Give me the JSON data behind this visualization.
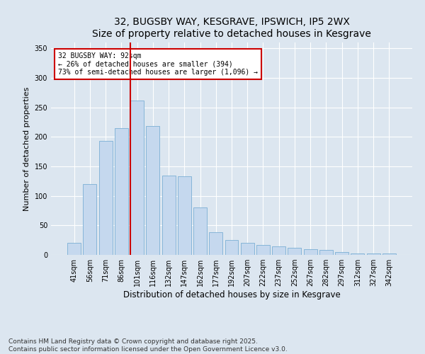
{
  "title": "32, BUGSBY WAY, KESGRAVE, IPSWICH, IP5 2WX",
  "subtitle": "Size of property relative to detached houses in Kesgrave",
  "xlabel": "Distribution of detached houses by size in Kesgrave",
  "ylabel": "Number of detached properties",
  "categories": [
    "41sqm",
    "56sqm",
    "71sqm",
    "86sqm",
    "101sqm",
    "116sqm",
    "132sqm",
    "147sqm",
    "162sqm",
    "177sqm",
    "192sqm",
    "207sqm",
    "222sqm",
    "237sqm",
    "252sqm",
    "267sqm",
    "282sqm",
    "297sqm",
    "312sqm",
    "327sqm",
    "342sqm"
  ],
  "values": [
    20,
    120,
    193,
    215,
    262,
    218,
    135,
    133,
    80,
    38,
    25,
    20,
    17,
    15,
    12,
    10,
    8,
    5,
    3,
    3,
    3
  ],
  "bar_color": "#c5d8ee",
  "bar_edge_color": "#7aafd4",
  "vline_color": "#cc0000",
  "vline_x_index": 3.57,
  "annotation_text": "32 BUGSBY WAY: 92sqm\n← 26% of detached houses are smaller (394)\n73% of semi-detached houses are larger (1,096) →",
  "annotation_box_facecolor": "#ffffff",
  "annotation_box_edgecolor": "#cc0000",
  "ylim": [
    0,
    360
  ],
  "yticks": [
    0,
    50,
    100,
    150,
    200,
    250,
    300,
    350
  ],
  "background_color": "#dce6f0",
  "plot_bg_color": "#dce6f0",
  "grid_color": "#ffffff",
  "footer_text": "Contains HM Land Registry data © Crown copyright and database right 2025.\nContains public sector information licensed under the Open Government Licence v3.0.",
  "title_fontsize": 10,
  "xlabel_fontsize": 8.5,
  "ylabel_fontsize": 8,
  "tick_fontsize": 7,
  "annotation_fontsize": 7,
  "footer_fontsize": 6.5
}
